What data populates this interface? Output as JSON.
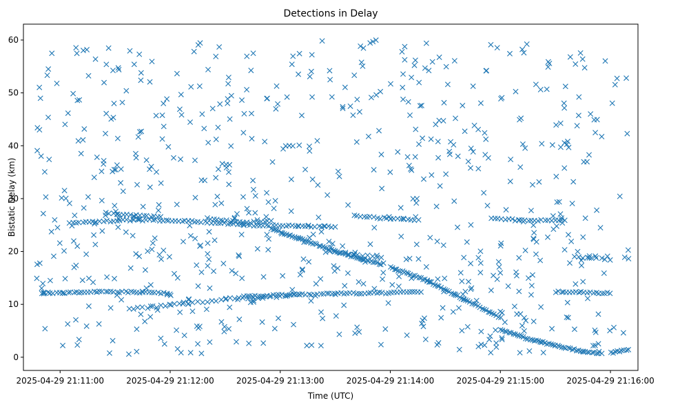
{
  "chart_data": {
    "type": "scatter",
    "title": "Detections in Delay",
    "xlabel": "Time (UTC)",
    "ylabel": "Bistatic Delay (km)",
    "marker": "x",
    "color": "#1f77b4",
    "grid": false,
    "x_unit": "seconds since 2025-04-29 21:11:00 UTC",
    "xlim": [
      -20,
      315
    ],
    "ylim": [
      -2.5,
      63
    ],
    "xticks": [
      0,
      60,
      120,
      180,
      240,
      300
    ],
    "xtick_labels": [
      "2025-04-29 21:11:00",
      "2025-04-29 21:12:00",
      "2025-04-29 21:13:00",
      "2025-04-29 21:14:00",
      "2025-04-29 21:15:00",
      "2025-04-29 21:16:00"
    ],
    "yticks": [
      0,
      10,
      20,
      30,
      40,
      50,
      60
    ],
    "ytick_labels": [
      "0",
      "10",
      "20",
      "30",
      "40",
      "50",
      "60"
    ],
    "tracks": [
      {
        "name": "track-a",
        "segments": [
          [
            [
              -10,
              12.1
            ],
            [
              20,
              12.4
            ],
            [
              45,
              12.3
            ],
            [
              60,
              12.0
            ]
          ],
          [
            [
              100,
              11.5
            ],
            [
              150,
              12.0
            ],
            [
              195,
              12.3
            ]
          ],
          [
            [
              270,
              12.4
            ],
            [
              300,
              12.1
            ]
          ]
        ],
        "step": 1.6,
        "jitter": 0.15
      },
      {
        "name": "track-b",
        "segments": [
          [
            [
              5,
              25.3
            ],
            [
              40,
              26.0
            ],
            [
              70,
              25.8
            ],
            [
              100,
              25.0
            ],
            [
              130,
              24.8
            ],
            [
              150,
              24.6
            ]
          ],
          [
            [
              160,
              26.7
            ],
            [
              180,
              26.2
            ],
            [
              195,
              25.9
            ]
          ],
          [
            [
              235,
              26.3
            ],
            [
              250,
              25.9
            ],
            [
              275,
              25.8
            ]
          ]
        ],
        "step": 1.8,
        "jitter": 0.15
      },
      {
        "name": "track-c",
        "segments": [
          [
            [
              25,
              27.3
            ],
            [
              40,
              26.8
            ],
            [
              55,
              26.6
            ]
          ],
          [
            [
              80,
              26.2
            ],
            [
              100,
              25.5
            ],
            [
              115,
              25.7
            ]
          ]
        ],
        "step": 1.8,
        "jitter": 0.15
      },
      {
        "name": "track-d",
        "segments": [
          [
            [
              115,
              24.3
            ],
            [
              130,
              22.5
            ],
            [
              150,
              20.0
            ],
            [
              165,
              18.5
            ],
            [
              175,
              17.6
            ]
          ],
          [
            [
              180,
              17.0
            ],
            [
              200,
              14.5
            ],
            [
              220,
              11.0
            ],
            [
              240,
              7.5
            ]
          ]
        ],
        "step": 1.1,
        "jitter": 0.12
      },
      {
        "name": "track-e",
        "segments": [
          [
            [
              240,
              5.3
            ],
            [
              255,
              3.5
            ],
            [
              270,
              2.2
            ],
            [
              285,
              1.1
            ],
            [
              295,
              0.7
            ]
          ],
          [
            [
              300,
              0.8
            ],
            [
              310,
              1.5
            ]
          ]
        ],
        "step": 1.2,
        "jitter": 0.12
      },
      {
        "name": "track-f",
        "segments": [
          [
            [
              40,
              9.2
            ],
            [
              50,
              9.5
            ],
            [
              60,
              9.8
            ],
            [
              70,
              10.2
            ],
            [
              90,
              11.0
            ],
            [
              110,
              11.3
            ],
            [
              130,
              11.8
            ]
          ]
        ],
        "step": 2.4,
        "jitter": 0.2
      },
      {
        "name": "track-g",
        "segments": [
          [
            [
              145,
              20.0
            ],
            [
              160,
              19.5
            ],
            [
              175,
              18.8
            ]
          ],
          [
            [
              280,
              19.0
            ],
            [
              300,
              18.5
            ]
          ]
        ],
        "step": 2.5,
        "jitter": 0.15
      }
    ],
    "noise": {
      "count": 720,
      "x_range": [
        -15,
        310
      ],
      "y_range": [
        0.5,
        60
      ],
      "seed": 20250429
    }
  }
}
